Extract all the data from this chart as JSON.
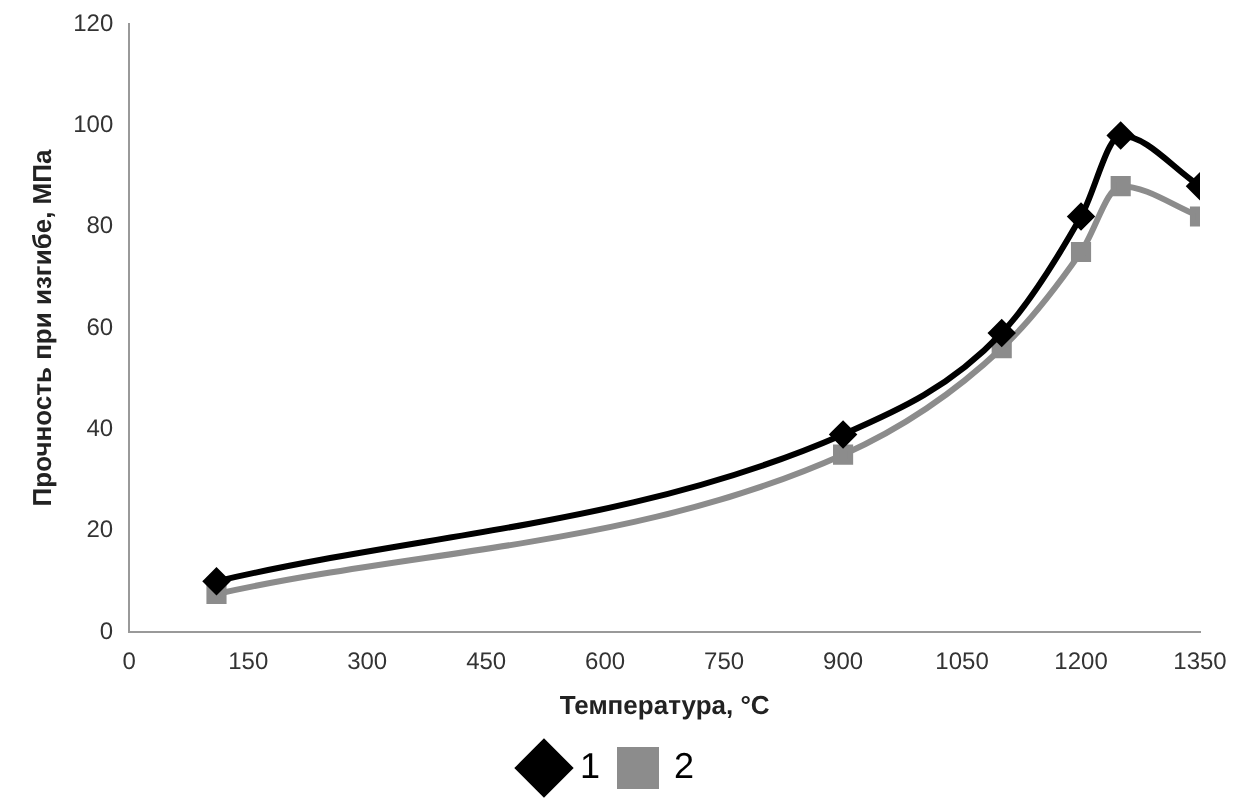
{
  "chart_data": {
    "type": "line",
    "xlabel": "Температура, °C",
    "ylabel": "Прочность при изгибе, МПа",
    "x": [
      110,
      900,
      1100,
      1200,
      1250,
      1350
    ],
    "series": [
      {
        "name": "1",
        "color": "#000000",
        "marker": "diamond",
        "values": [
          10,
          39,
          59,
          82,
          98,
          88
        ]
      },
      {
        "name": "2",
        "color": "#8c8c8c",
        "marker": "square",
        "values": [
          7.5,
          35,
          56,
          75,
          88,
          82
        ]
      }
    ],
    "xlim": [
      0,
      1350
    ],
    "xticks": [
      0,
      150,
      300,
      450,
      600,
      750,
      900,
      1050,
      1200,
      1350
    ],
    "ylim": [
      0,
      120
    ],
    "yticks": [
      0,
      20,
      40,
      60,
      80,
      100,
      120
    ],
    "grid": false,
    "legend": "bottom"
  }
}
